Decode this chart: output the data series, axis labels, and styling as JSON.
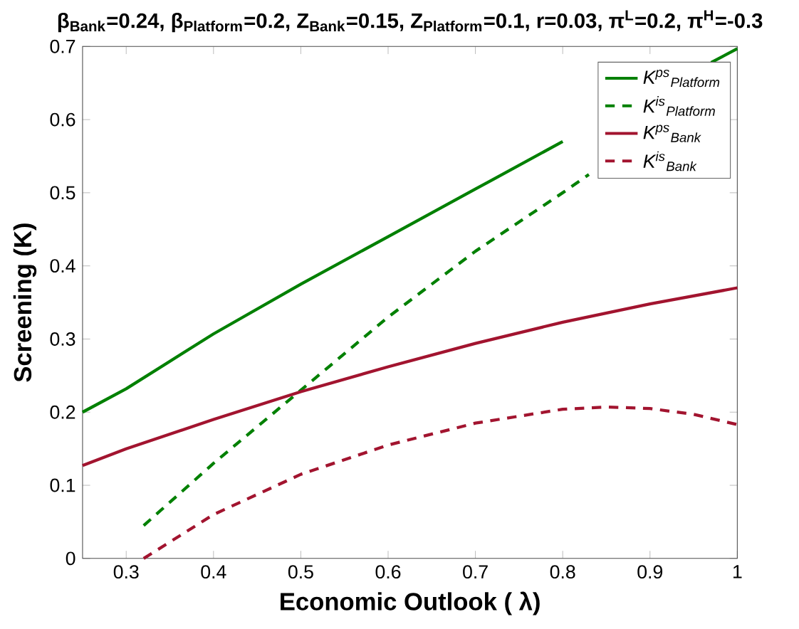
{
  "chart_data": {
    "type": "line",
    "title": "β$_{Bank}$=0.24, β$_{Platform}$=0.2, Z$_{Bank}$=0.15, Z$_{Platform}$=0.1, r=0.03, π$^{L}$=0.2, π$^{H}$=-0.3",
    "xlabel": "Economic Outlook ( λ)",
    "ylabel": "Screening (K)",
    "xlim": [
      0.25,
      1
    ],
    "ylim": [
      0,
      0.7
    ],
    "xticks": [
      0.3,
      0.4,
      0.5,
      0.6,
      0.7,
      0.8,
      0.9,
      1
    ],
    "yticks": [
      0,
      0.1,
      0.2,
      0.3,
      0.4,
      0.5,
      0.6,
      0.7
    ],
    "legend": "top right",
    "series": [
      {
        "name": "K$^{ps}$$_{Platform}$",
        "color": "#008000",
        "line_style": "solid",
        "x": [
          0.25,
          0.3,
          0.4,
          0.5,
          0.6,
          0.7,
          0.8,
          0.85,
          0.97,
          1
        ],
        "values": [
          0.2,
          0.232,
          0.307,
          0.375,
          0.44,
          0.505,
          0.57,
          null,
          0.678,
          0.697
        ]
      },
      {
        "name": "K$^{is}$$_{Platform}$",
        "color": "#008000",
        "line_style": "dashed",
        "x": [
          0.32,
          0.4,
          0.5,
          0.6,
          0.7,
          0.8,
          0.83
        ],
        "values": [
          0.045,
          0.13,
          0.23,
          0.33,
          0.42,
          0.5,
          0.525
        ]
      },
      {
        "name": "K$^{ps}$$_{Bank}$",
        "color": "#a2142f",
        "line_style": "solid",
        "x": [
          0.25,
          0.3,
          0.4,
          0.5,
          0.6,
          0.7,
          0.8,
          0.9,
          1
        ],
        "values": [
          0.127,
          0.15,
          0.19,
          0.228,
          0.262,
          0.294,
          0.323,
          0.348,
          0.37
        ]
      },
      {
        "name": "K$^{is}$$_{Bank}$",
        "color": "#a2142f",
        "line_style": "dashed",
        "x": [
          0.32,
          0.4,
          0.5,
          0.6,
          0.7,
          0.8,
          0.85,
          0.9,
          0.95,
          1
        ],
        "values": [
          0.0,
          0.06,
          0.115,
          0.155,
          0.185,
          0.204,
          0.207,
          0.205,
          0.197,
          0.183
        ]
      }
    ]
  }
}
